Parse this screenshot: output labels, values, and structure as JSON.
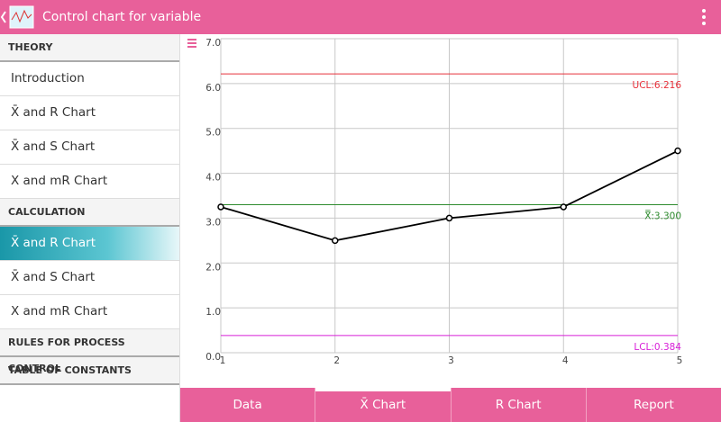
{
  "header": {
    "title": "Control chart for variable"
  },
  "sidebar": {
    "sections": [
      {
        "title": "THEORY",
        "items": [
          "Introduction",
          "X̄ and R Chart",
          "X̄ and S Chart",
          "X and mR Chart"
        ]
      },
      {
        "title": "CALCULATION",
        "items": [
          "X̄ and R Chart",
          "X̄ and S Chart",
          "X and mR Chart"
        ]
      },
      {
        "title": "RULES FOR PROCESS CONTROL",
        "items": []
      },
      {
        "title": "TABLE OF CONSTANTS",
        "items": []
      }
    ],
    "selected": {
      "section": 1,
      "item": 0
    }
  },
  "chart_data": {
    "type": "line",
    "x": [
      1,
      2,
      3,
      4,
      5
    ],
    "series": [
      {
        "color": "#000000",
        "values": [
          3.25,
          2.5,
          3.0,
          3.25,
          4.5
        ]
      }
    ],
    "xlim": [
      1,
      5
    ],
    "xticks": [
      1,
      2,
      3,
      4,
      5
    ],
    "ylim": [
      0,
      7
    ],
    "yticks": [
      {
        "value": 0,
        "label": "0.0"
      },
      {
        "value": 1,
        "label": "1.0"
      },
      {
        "value": 2,
        "label": "2.0"
      },
      {
        "value": 3,
        "label": "3.0"
      },
      {
        "value": 4,
        "label": "4.0"
      },
      {
        "value": 5,
        "label": "5.0"
      },
      {
        "value": 6,
        "label": "6.0"
      },
      {
        "value": 7,
        "label": "7.0"
      }
    ],
    "grid": true,
    "reference_lines": [
      {
        "value": 6.216,
        "label": "UCL:6.216",
        "color": "#e8303a"
      },
      {
        "value": 3.3,
        "label": "X̿:3.300",
        "color": "#2e8b2e"
      },
      {
        "value": 0.384,
        "label": "LCL:0.384",
        "color": "#d81ed8"
      }
    ]
  },
  "tabs": {
    "items": [
      "Data",
      "X̄ Chart",
      "R Chart",
      "Report"
    ],
    "selected": 1
  }
}
